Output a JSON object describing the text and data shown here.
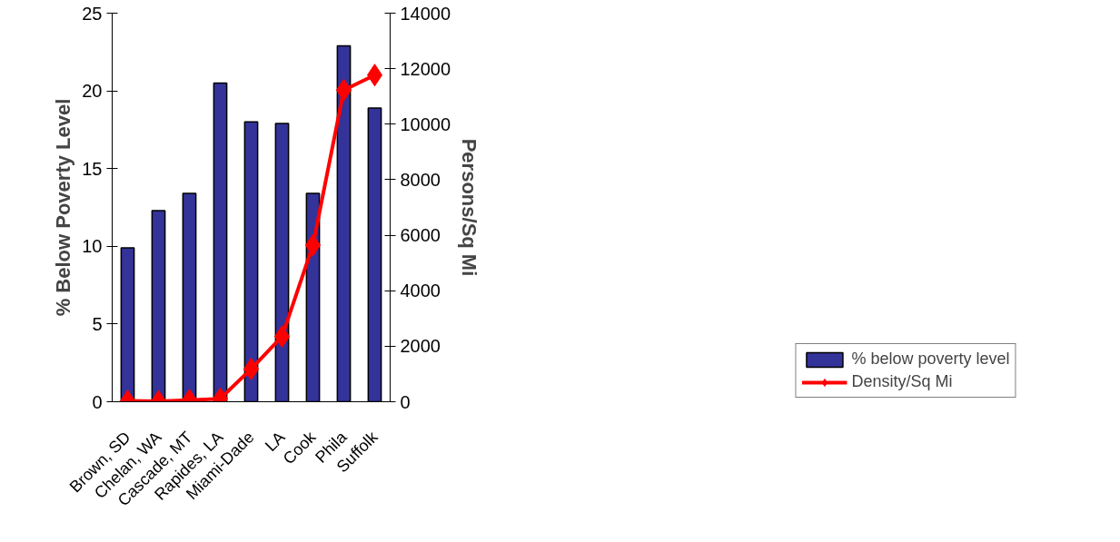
{
  "chart_data": {
    "type": "bar",
    "categories": [
      "Brown, SD",
      "Chelan, WA",
      "Cascade, MT",
      "Rapides, LA",
      "Miami-Dade",
      "LA",
      "Cook",
      "Phila",
      "Suffolk"
    ],
    "ylabel": "% Below Poverty Level",
    "y2label": "Persons/Sq Mi",
    "ylim": [
      0,
      25
    ],
    "yticks": [
      0,
      5,
      10,
      15,
      20,
      25
    ],
    "y2lim": [
      0,
      14000
    ],
    "y2ticks": [
      0,
      2000,
      4000,
      6000,
      8000,
      10000,
      12000,
      14000
    ],
    "series": [
      {
        "name": "% below poverty level",
        "type": "bar",
        "color": "#333399",
        "values": [
          9.9,
          12.3,
          13.4,
          20.5,
          18.0,
          17.9,
          13.4,
          22.9,
          18.9
        ]
      },
      {
        "name": "Density/Sq Mi",
        "type": "line",
        "axis": "y2",
        "color": "#ff0000",
        "marker": "diamond",
        "values": [
          30,
          20,
          60,
          110,
          1180,
          2350,
          5640,
          11230,
          11770
        ]
      }
    ],
    "legend": "bottom right",
    "grid": false
  }
}
